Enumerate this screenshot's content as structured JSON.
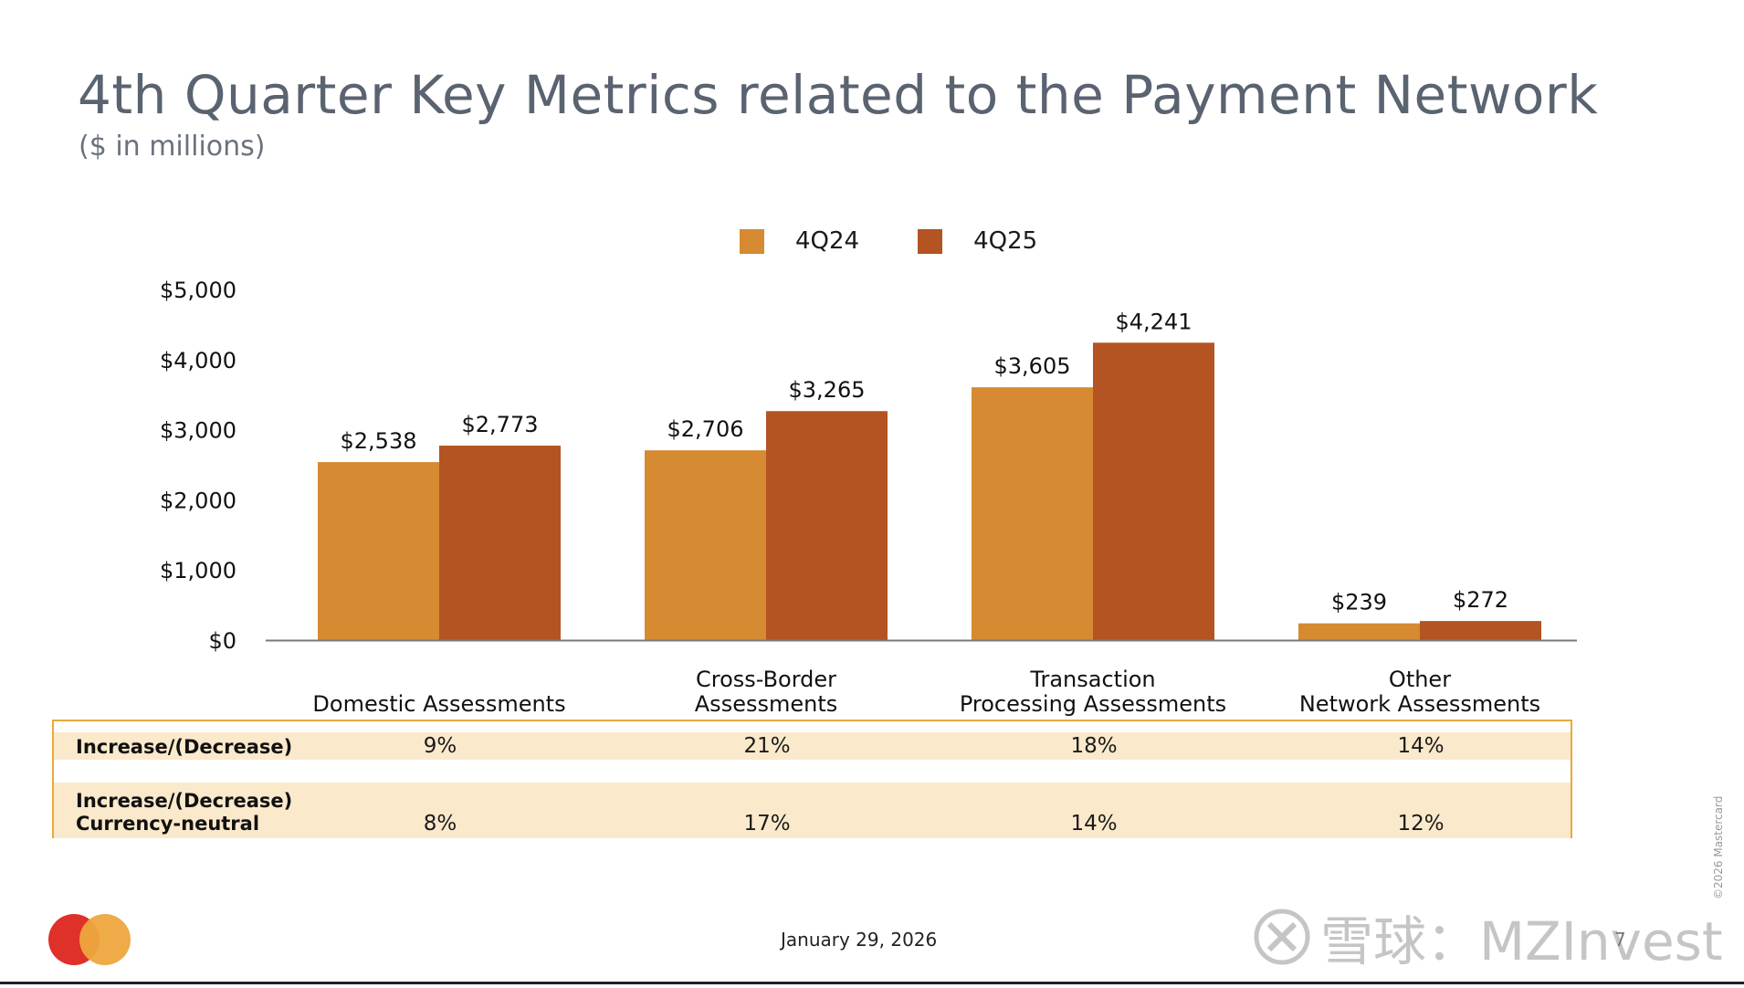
{
  "slide": {
    "title": "4th Quarter Key Metrics related to the Payment Network",
    "subtitle": "($ in millions)",
    "date": "January 29, 2026",
    "page_number": "7",
    "copyright": "©2026 Mastercard",
    "watermark": "雪球：MZInvest",
    "colors": {
      "4Q24": "#d68a31",
      "4Q25": "#b35422",
      "table_fill": "#fbe9cb",
      "table_border": "#e8a93c"
    }
  },
  "chart_data": {
    "type": "bar",
    "title": "4th Quarter Key Metrics related to the Payment Network",
    "subtitle": "($ in millions)",
    "xlabel": "",
    "ylabel": "",
    "categories": [
      [
        "Domestic Assessments"
      ],
      [
        "Cross-Border",
        "Assessments"
      ],
      [
        "Transaction",
        "Processing Assessments"
      ],
      [
        "Other",
        "Network Assessments"
      ]
    ],
    "series": [
      {
        "name": "4Q24",
        "color": "#d68a31",
        "values": [
          2538,
          2706,
          3605,
          239
        ],
        "labels": [
          "$2,538",
          "$2,706",
          "$3,605",
          "$239"
        ]
      },
      {
        "name": "4Q25",
        "color": "#b35422",
        "values": [
          2773,
          3265,
          4241,
          272
        ],
        "labels": [
          "$2,773",
          "$3,265",
          "$4,241",
          "$272"
        ]
      }
    ],
    "ylim": [
      0,
      5000
    ],
    "yticks": [
      0,
      1000,
      2000,
      3000,
      4000,
      5000
    ],
    "ytick_labels": [
      "$0",
      "$1,000",
      "$2,000",
      "$3,000",
      "$4,000",
      "$5,000"
    ],
    "grid": false,
    "legend": "top-center"
  },
  "metrics_table": {
    "rows": [
      {
        "label": [
          "Increase/(Decrease)"
        ],
        "values": [
          "9%",
          "21%",
          "18%",
          "14%"
        ]
      },
      {
        "label": [
          "Increase/(Decrease)",
          "Currency-neutral"
        ],
        "values": [
          "8%",
          "17%",
          "14%",
          "12%"
        ]
      }
    ]
  }
}
